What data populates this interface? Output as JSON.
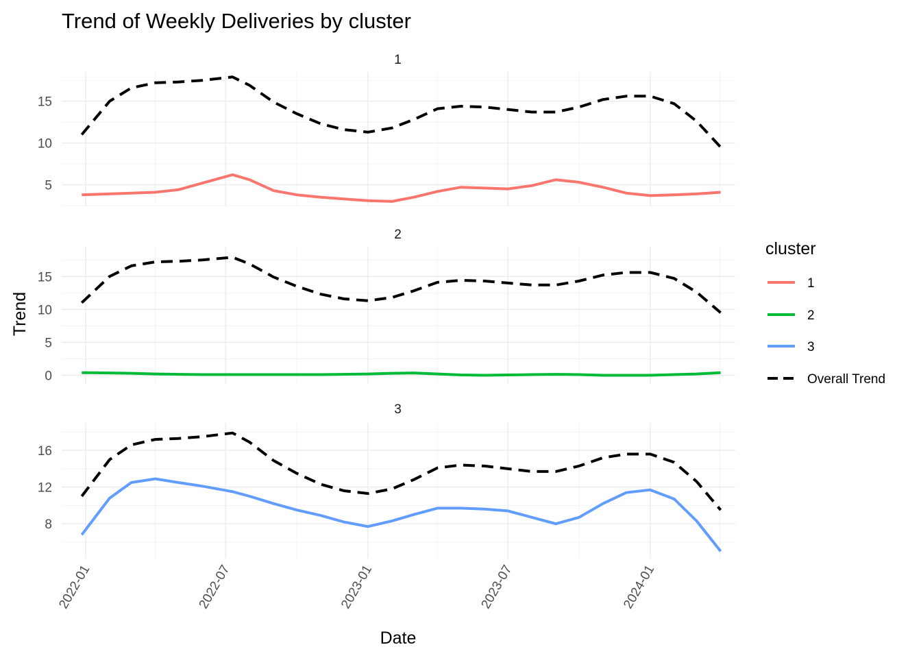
{
  "chart_data": {
    "type": "line",
    "title": "Trend of Weekly Deliveries by cluster",
    "xlabel": "Date",
    "ylabel": "Trend",
    "x_axis": {
      "type": "date",
      "range": [
        "2021-12-01",
        "2024-04-20"
      ],
      "tick_labels": [
        "2022-01",
        "2022-07",
        "2023-01",
        "2023-07",
        "2024-01"
      ]
    },
    "grid": true,
    "legend": {
      "title": "cluster",
      "placement": "right",
      "entries": [
        {
          "label": "1",
          "color": "#F8766D",
          "style": "solid"
        },
        {
          "label": "2",
          "color": "#00BA38",
          "style": "solid"
        },
        {
          "label": "3",
          "color": "#619CFF",
          "style": "solid"
        },
        {
          "label": "Overall Trend",
          "color": "#000000",
          "style": "dashed"
        }
      ]
    },
    "overall_trend": {
      "name": "Overall Trend",
      "color": "#000000",
      "x": [
        "2021-12-27",
        "2022-02-01",
        "2022-03-01",
        "2022-04-01",
        "2022-05-01",
        "2022-06-01",
        "2022-07-10",
        "2022-08-01",
        "2022-09-01",
        "2022-10-01",
        "2022-11-01",
        "2022-12-01",
        "2023-01-01",
        "2023-02-01",
        "2023-03-01",
        "2023-04-01",
        "2023-05-01",
        "2023-06-01",
        "2023-07-01",
        "2023-08-01",
        "2023-09-01",
        "2023-10-01",
        "2023-11-01",
        "2023-12-01",
        "2024-01-01",
        "2024-02-01",
        "2024-03-01",
        "2024-04-01"
      ],
      "values": [
        11.0,
        15.0,
        16.6,
        17.2,
        17.3,
        17.5,
        17.9,
        16.9,
        14.9,
        13.5,
        12.3,
        11.6,
        11.3,
        11.8,
        12.8,
        14.1,
        14.4,
        14.3,
        14.0,
        13.7,
        13.7,
        14.3,
        15.2,
        15.6,
        15.6,
        14.7,
        12.6,
        9.5
      ]
    },
    "facets": [
      {
        "label": "1",
        "color": "#F8766D",
        "ylim": [
          2.5,
          18.5
        ],
        "y_ticks": [
          5,
          10,
          15
        ],
        "x": [
          "2021-12-27",
          "2022-02-01",
          "2022-03-01",
          "2022-04-01",
          "2022-05-01",
          "2022-06-01",
          "2022-07-10",
          "2022-08-01",
          "2022-09-01",
          "2022-10-01",
          "2022-11-01",
          "2022-12-01",
          "2023-01-01",
          "2023-02-01",
          "2023-03-01",
          "2023-04-01",
          "2023-05-01",
          "2023-06-01",
          "2023-07-01",
          "2023-08-01",
          "2023-09-01",
          "2023-10-01",
          "2023-11-01",
          "2023-12-01",
          "2024-01-01",
          "2024-02-01",
          "2024-03-01",
          "2024-04-01"
        ],
        "values": [
          3.8,
          3.9,
          4.0,
          4.1,
          4.4,
          5.2,
          6.2,
          5.6,
          4.3,
          3.8,
          3.5,
          3.3,
          3.1,
          3.0,
          3.5,
          4.2,
          4.7,
          4.6,
          4.5,
          4.9,
          5.6,
          5.3,
          4.7,
          4.0,
          3.7,
          3.8,
          3.9,
          4.1
        ]
      },
      {
        "label": "2",
        "color": "#00BA38",
        "ylim": [
          -1.3,
          19.5
        ],
        "y_ticks": [
          0,
          5,
          10,
          15
        ],
        "x": [
          "2021-12-27",
          "2022-02-01",
          "2022-03-01",
          "2022-04-01",
          "2022-05-01",
          "2022-06-01",
          "2022-07-10",
          "2022-08-01",
          "2022-09-01",
          "2022-10-01",
          "2022-11-01",
          "2022-12-01",
          "2023-01-01",
          "2023-02-01",
          "2023-03-01",
          "2023-04-01",
          "2023-05-01",
          "2023-06-01",
          "2023-07-01",
          "2023-08-01",
          "2023-09-01",
          "2023-10-01",
          "2023-11-01",
          "2023-12-01",
          "2024-01-01",
          "2024-02-01",
          "2024-03-01",
          "2024-04-01"
        ],
        "values": [
          0.4,
          0.35,
          0.3,
          0.2,
          0.15,
          0.1,
          0.1,
          0.1,
          0.1,
          0.1,
          0.1,
          0.15,
          0.2,
          0.3,
          0.35,
          0.2,
          0.05,
          0.0,
          0.05,
          0.1,
          0.15,
          0.1,
          0.0,
          0.0,
          0.0,
          0.1,
          0.2,
          0.4
        ]
      },
      {
        "label": "3",
        "color": "#619CFF",
        "ylim": [
          4.2,
          19.0
        ],
        "y_ticks": [
          8,
          12,
          16
        ],
        "x": [
          "2021-12-27",
          "2022-02-01",
          "2022-03-01",
          "2022-04-01",
          "2022-05-01",
          "2022-06-01",
          "2022-07-10",
          "2022-08-01",
          "2022-09-01",
          "2022-10-01",
          "2022-11-01",
          "2022-12-01",
          "2023-01-01",
          "2023-02-01",
          "2023-03-01",
          "2023-04-01",
          "2023-05-01",
          "2023-06-01",
          "2023-07-01",
          "2023-08-01",
          "2023-09-01",
          "2023-10-01",
          "2023-11-01",
          "2023-12-01",
          "2024-01-01",
          "2024-02-01",
          "2024-03-01",
          "2024-04-01"
        ],
        "values": [
          6.8,
          10.8,
          12.5,
          12.9,
          12.5,
          12.1,
          11.5,
          11.0,
          10.2,
          9.5,
          8.9,
          8.2,
          7.7,
          8.3,
          9.0,
          9.7,
          9.7,
          9.6,
          9.4,
          8.7,
          8.0,
          8.7,
          10.2,
          11.4,
          11.7,
          10.7,
          8.3,
          5.0
        ]
      }
    ]
  }
}
